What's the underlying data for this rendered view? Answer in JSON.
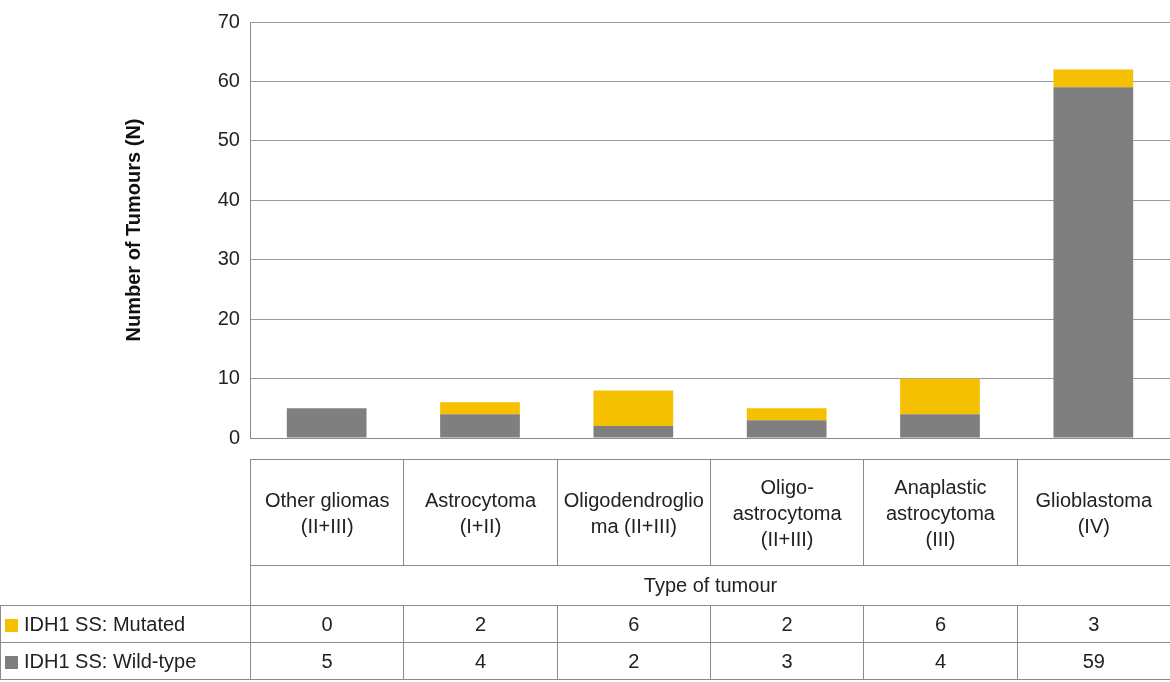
{
  "chart_data": {
    "type": "bar",
    "stacked": true,
    "xlabel": "Type of tumour",
    "ylabel": "Number of Tumours (N)",
    "categories": [
      "Other gliomas (II+III)",
      "Astrocytoma (I+II)",
      "Oligodendroglioma (II+III)",
      "Oligo-astrocytoma (II+III)",
      "Anaplastic astrocytoma (III)",
      "Glioblastoma (IV)"
    ],
    "series": [
      {
        "name": "IDH1 SS: Wild-type",
        "color": "#7f7f7f",
        "values": [
          5,
          4,
          2,
          3,
          4,
          59
        ]
      },
      {
        "name": "IDH1 SS: Mutated",
        "color": "#f5c000",
        "values": [
          0,
          2,
          6,
          2,
          6,
          3
        ]
      }
    ],
    "ylim": [
      0,
      70
    ],
    "yticks": [
      0,
      10,
      20,
      30,
      40,
      50,
      60,
      70
    ],
    "grid": "y",
    "legend": "bottom",
    "data_labels": true
  }
}
